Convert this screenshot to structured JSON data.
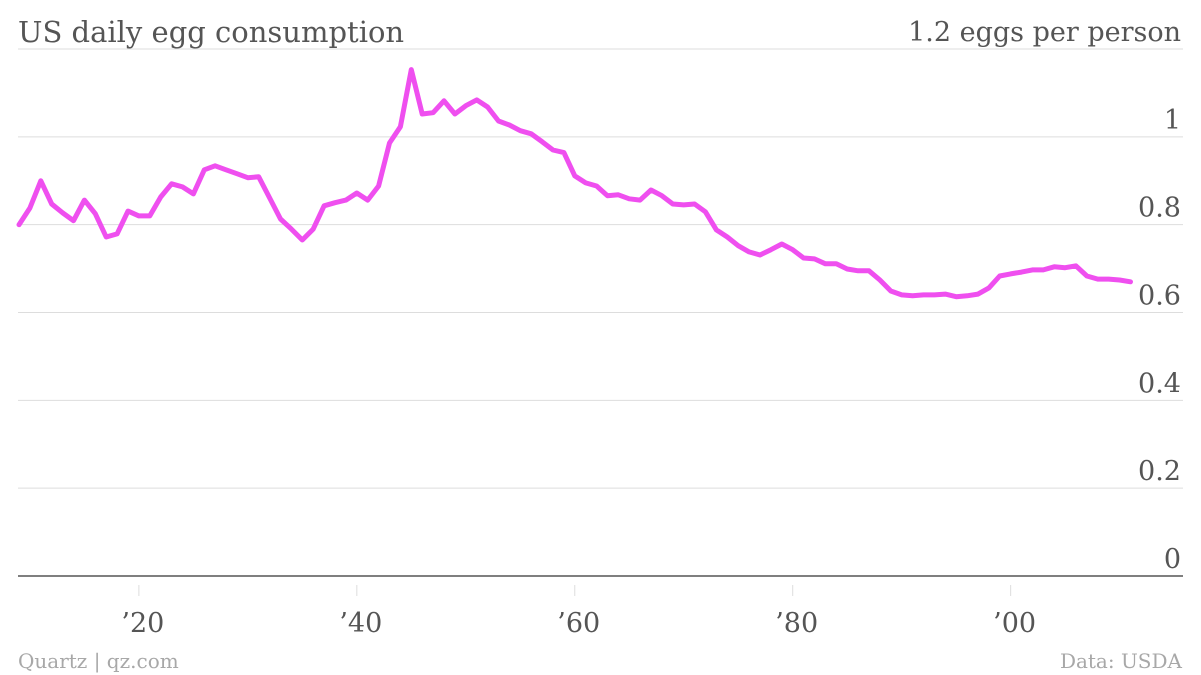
{
  "chart_data": {
    "type": "line",
    "title": "US daily egg consumption",
    "source": "Data: USDA",
    "credit": "Quartz | qz.com",
    "x": [
      1909,
      1910,
      1911,
      1912,
      1913,
      1914,
      1915,
      1916,
      1917,
      1918,
      1919,
      1920,
      1921,
      1922,
      1923,
      1924,
      1925,
      1926,
      1927,
      1928,
      1929,
      1930,
      1931,
      1932,
      1933,
      1934,
      1935,
      1936,
      1937,
      1938,
      1939,
      1940,
      1941,
      1942,
      1943,
      1944,
      1945,
      1946,
      1947,
      1948,
      1949,
      1950,
      1951,
      1952,
      1953,
      1954,
      1955,
      1956,
      1957,
      1958,
      1959,
      1960,
      1961,
      1962,
      1963,
      1964,
      1965,
      1966,
      1967,
      1968,
      1969,
      1970,
      1971,
      1972,
      1973,
      1974,
      1975,
      1976,
      1977,
      1978,
      1979,
      1980,
      1981,
      1982,
      1983,
      1984,
      1985,
      1986,
      1987,
      1988,
      1989,
      1990,
      1991,
      1992,
      1993,
      1994,
      1995,
      1996,
      1997,
      1998,
      1999,
      2000,
      2001,
      2002,
      2003,
      2004,
      2005,
      2006,
      2007,
      2008,
      2009,
      2010,
      2011
    ],
    "series": [
      {
        "color": "#ef4fef",
        "values": [
          0.8,
          0.838,
          0.9,
          0.847,
          0.827,
          0.809,
          0.856,
          0.825,
          0.772,
          0.779,
          0.831,
          0.82,
          0.82,
          0.863,
          0.893,
          0.886,
          0.87,
          0.925,
          0.934,
          0.925,
          0.916,
          0.907,
          0.909,
          0.861,
          0.813,
          0.79,
          0.765,
          0.79,
          0.843,
          0.85,
          0.856,
          0.872,
          0.856,
          0.888,
          0.986,
          1.023,
          1.153,
          1.052,
          1.055,
          1.082,
          1.052,
          1.071,
          1.084,
          1.068,
          1.036,
          1.027,
          1.014,
          1.007,
          0.989,
          0.97,
          0.964,
          0.911,
          0.895,
          0.888,
          0.866,
          0.868,
          0.859,
          0.856,
          0.879,
          0.866,
          0.847,
          0.845,
          0.847,
          0.829,
          0.788,
          0.772,
          0.752,
          0.738,
          0.731,
          0.743,
          0.756,
          0.743,
          0.724,
          0.722,
          0.711,
          0.711,
          0.699,
          0.695,
          0.695,
          0.674,
          0.649,
          0.64,
          0.638,
          0.64,
          0.64,
          0.642,
          0.636,
          0.638,
          0.642,
          0.656,
          0.683,
          0.688,
          0.692,
          0.697,
          0.697,
          0.704,
          0.702,
          0.706,
          0.683,
          0.676,
          0.676,
          0.674,
          0.67
        ]
      }
    ],
    "xlim": [
      1909,
      2016
    ],
    "xticks": [
      {
        "value": 1920,
        "label": "’20"
      },
      {
        "value": 1940,
        "label": "’40"
      },
      {
        "value": 1960,
        "label": "’60"
      },
      {
        "value": 1980,
        "label": "’80"
      },
      {
        "value": 2000,
        "label": "’00"
      }
    ],
    "ylim": [
      0,
      1.2
    ],
    "yticks": [
      0,
      0.2,
      0.4,
      0.6,
      0.8,
      1.0,
      {
        "value": 1.2,
        "label": "1.2 eggs per person"
      }
    ],
    "grid": true
  }
}
